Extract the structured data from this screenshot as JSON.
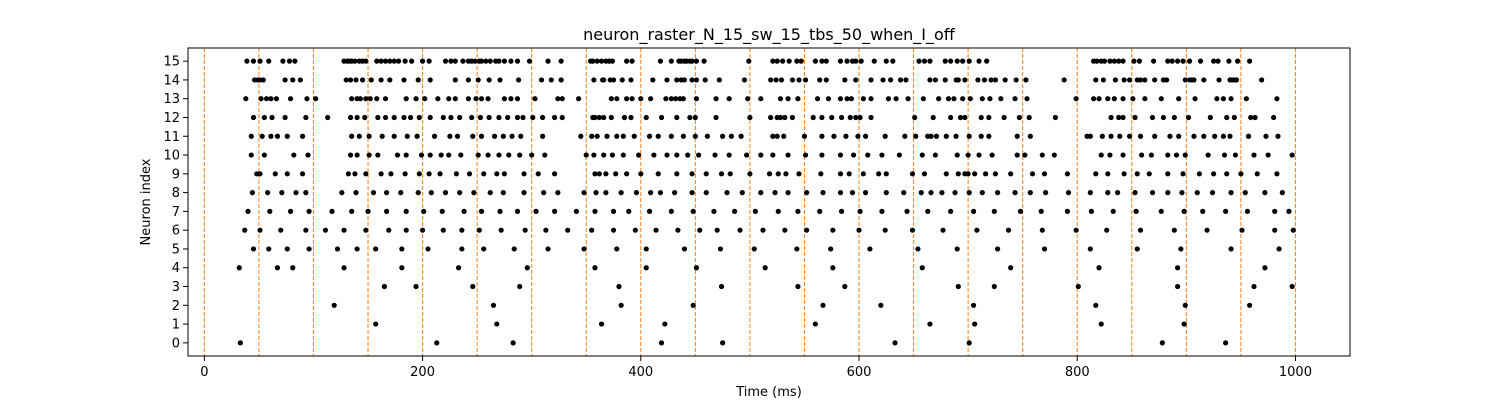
{
  "chart_data": {
    "type": "scatter",
    "title": "neuron_raster_N_15_sw_15_tbs_50_when_I_off",
    "xlabel": "Time (ms)",
    "ylabel": "Neuron index",
    "xlim": [
      -15,
      1050
    ],
    "ylim": [
      -0.7,
      15.7
    ],
    "x_ticks": [
      0,
      200,
      400,
      600,
      800,
      1000
    ],
    "y_ticks": [
      0,
      1,
      2,
      3,
      4,
      5,
      6,
      7,
      8,
      9,
      10,
      11,
      12,
      13,
      14,
      15
    ],
    "grid": false,
    "marker_color": "#000000",
    "vline_color": "#ff7f0e",
    "vlines": [
      0,
      50,
      100,
      150,
      200,
      250,
      300,
      350,
      400,
      450,
      500,
      550,
      600,
      650,
      700,
      750,
      800,
      850,
      900,
      950,
      1000
    ],
    "series": [
      {
        "neuron": 15,
        "spike_times": [
          39,
          45,
          51,
          59,
          72,
          78,
          83,
          128,
          131,
          133,
          135,
          138,
          142,
          145,
          148,
          158,
          162,
          166,
          170,
          174,
          178,
          184,
          190,
          200,
          206,
          221,
          226,
          230,
          237,
          242,
          245,
          248,
          252,
          254,
          258,
          262,
          267,
          270,
          275,
          281,
          287,
          298,
          315,
          327,
          354,
          356,
          360,
          364,
          368,
          371,
          374,
          387,
          392,
          418,
          428,
          435,
          437,
          440,
          442,
          445,
          447,
          451,
          458,
          499,
          521,
          525,
          530,
          536,
          543,
          547,
          560,
          566,
          570,
          583,
          589,
          594,
          597,
          602,
          614,
          625,
          631,
          655,
          660,
          665,
          679,
          684,
          690,
          695,
          701,
          710,
          717,
          815,
          818,
          822,
          825,
          830,
          834,
          838,
          842,
          852,
          857,
          870,
          883,
          887,
          892,
          897,
          903,
          913,
          925,
          929,
          939,
          947,
          958
        ]
      },
      {
        "neuron": 14,
        "spike_times": [
          46,
          49,
          51,
          54,
          74,
          81,
          88,
          130,
          134,
          139,
          145,
          153,
          162,
          170,
          183,
          196,
          207,
          230,
          242,
          251,
          261,
          271,
          288,
          309,
          318,
          327,
          357,
          365,
          366,
          372,
          375,
          383,
          391,
          411,
          424,
          433,
          437,
          440,
          447,
          451,
          459,
          472,
          495,
          519,
          524,
          529,
          539,
          545,
          551,
          564,
          570,
          587,
          597,
          611,
          622,
          629,
          638,
          643,
          665,
          670,
          679,
          689,
          691,
          697,
          709,
          715,
          721,
          725,
          734,
          744,
          753,
          788,
          817,
          824,
          835,
          843,
          848,
          855,
          858,
          862,
          871,
          879,
          882,
          899,
          903,
          905,
          907,
          916,
          930,
          940,
          942,
          944,
          946,
          969
        ]
      },
      {
        "neuron": 13,
        "spike_times": [
          38,
          52,
          57,
          61,
          66,
          79,
          94,
          102,
          135,
          140,
          143,
          148,
          152,
          158,
          166,
          185,
          194,
          202,
          214,
          224,
          230,
          242,
          249,
          254,
          260,
          275,
          281,
          287,
          303,
          324,
          328,
          343,
          373,
          378,
          387,
          392,
          400,
          409,
          423,
          428,
          432,
          436,
          439,
          451,
          469,
          481,
          498,
          510,
          528,
          535,
          544,
          562,
          572,
          583,
          589,
          593,
          604,
          611,
          627,
          634,
          645,
          659,
          673,
          682,
          687,
          695,
          702,
          713,
          720,
          730,
          743,
          754,
          799,
          815,
          820,
          828,
          834,
          842,
          851,
          862,
          877,
          893,
          908,
          928,
          934,
          941,
          955,
          983
        ]
      },
      {
        "neuron": 12,
        "spike_times": [
          45,
          55,
          62,
          74,
          93,
          113,
          134,
          140,
          147,
          159,
          166,
          174,
          183,
          189,
          197,
          207,
          219,
          226,
          234,
          245,
          253,
          261,
          270,
          278,
          287,
          292,
          301,
          310,
          321,
          328,
          356,
          358,
          362,
          366,
          373,
          385,
          391,
          405,
          419,
          433,
          445,
          450,
          469,
          500,
          519,
          525,
          528,
          532,
          539,
          558,
          566,
          575,
          584,
          592,
          597,
          601,
          611,
          651,
          668,
          684,
          693,
          697,
          712,
          719,
          733,
          747,
          756,
          780,
          831,
          838,
          842,
          853,
          869,
          879,
          889,
          902,
          922,
          937,
          944,
          959,
          963,
          980
        ]
      },
      {
        "neuron": 11,
        "spike_times": [
          43,
          53,
          61,
          67,
          76,
          90,
          135,
          142,
          151,
          163,
          174,
          186,
          195,
          211,
          225,
          232,
          246,
          254,
          266,
          274,
          282,
          290,
          310,
          345,
          355,
          360,
          369,
          378,
          384,
          394,
          408,
          416,
          428,
          439,
          450,
          461,
          475,
          483,
          492,
          521,
          525,
          531,
          550,
          566,
          577,
          588,
          599,
          606,
          624,
          642,
          652,
          663,
          666,
          671,
          680,
          689,
          701,
          712,
          719,
          745,
          757,
          809,
          812,
          823,
          831,
          839,
          848,
          858,
          871,
          885,
          893,
          907,
          916,
          926,
          934,
          940,
          957,
          973,
          984
        ]
      },
      {
        "neuron": 10,
        "spike_times": [
          43,
          55,
          82,
          95,
          134,
          140,
          151,
          159,
          177,
          185,
          199,
          207,
          217,
          224,
          235,
          251,
          260,
          270,
          279,
          289,
          300,
          312,
          350,
          357,
          366,
          374,
          384,
          398,
          412,
          424,
          433,
          443,
          453,
          468,
          481,
          497,
          510,
          521,
          535,
          551,
          566,
          583,
          595,
          608,
          621,
          637,
          658,
          670,
          690,
          700,
          710,
          722,
          745,
          752,
          768,
          779,
          822,
          830,
          842,
          859,
          868,
          883,
          891,
          899,
          920,
          935,
          945,
          962,
          975,
          997
        ]
      },
      {
        "neuron": 9,
        "spike_times": [
          48,
          51,
          65,
          76,
          90,
          132,
          138,
          148,
          162,
          171,
          184,
          197,
          206,
          216,
          231,
          243,
          256,
          268,
          275,
          293,
          306,
          321,
          358,
          362,
          368,
          377,
          387,
          400,
          416,
          433,
          447,
          460,
          474,
          482,
          500,
          518,
          526,
          533,
          545,
          565,
          583,
          591,
          604,
          618,
          625,
          649,
          660,
          680,
          691,
          697,
          700,
          706,
          716,
          725,
          739,
          759,
          770,
          791,
          817,
          828,
          843,
          855,
          866,
          883,
          897,
          912,
          925,
          937,
          950,
          965,
          983
        ]
      },
      {
        "neuron": 8,
        "spike_times": [
          44,
          58,
          71,
          84,
          93,
          126,
          139,
          155,
          167,
          180,
          196,
          208,
          221,
          234,
          247,
          262,
          274,
          293,
          311,
          324,
          348,
          359,
          368,
          382,
          396,
          409,
          418,
          431,
          447,
          460,
          479,
          493,
          510,
          523,
          535,
          552,
          567,
          583,
          594,
          606,
          625,
          641,
          657,
          666,
          676,
          688,
          701,
          713,
          727,
          743,
          757,
          771,
          792,
          812,
          828,
          837,
          853,
          869,
          883,
          896,
          910,
          924,
          941,
          954,
          972,
          988
        ]
      },
      {
        "neuron": 7,
        "spike_times": [
          40,
          60,
          79,
          96,
          117,
          135,
          150,
          167,
          185,
          201,
          218,
          238,
          254,
          271,
          287,
          304,
          321,
          341,
          358,
          375,
          389,
          408,
          428,
          448,
          467,
          486,
          505,
          526,
          544,
          564,
          584,
          601,
          621,
          644,
          663,
          684,
          705,
          724,
          748,
          767,
          791,
          813,
          833,
          854,
          877,
          898,
          915,
          936,
          956,
          981,
          994
        ]
      },
      {
        "neuron": 6,
        "spike_times": [
          37,
          51,
          70,
          93,
          111,
          128,
          148,
          169,
          185,
          200,
          219,
          236,
          252,
          272,
          294,
          313,
          333,
          355,
          375,
          395,
          414,
          434,
          454,
          470,
          491,
          512,
          532,
          552,
          576,
          600,
          624,
          649,
          677,
          708,
          737,
          768,
          799,
          827,
          858,
          889,
          919,
          951,
          981,
          998
        ]
      },
      {
        "neuron": 5,
        "spike_times": [
          45,
          59,
          76,
          96,
          122,
          140,
          157,
          181,
          205,
          236,
          256,
          284,
          315,
          348,
          378,
          405,
          440,
          473,
          504,
          543,
          574,
          610,
          654,
          690,
          727,
          770,
          812,
          855,
          895,
          941,
          985
        ]
      },
      {
        "neuron": 4,
        "spike_times": [
          32,
          67,
          81,
          128,
          181,
          233,
          296,
          358,
          405,
          451,
          514,
          576,
          658,
          739,
          820,
          892,
          972
        ]
      },
      {
        "neuron": 3,
        "spike_times": [
          165,
          194,
          246,
          289,
          380,
          474,
          544,
          587,
          691,
          724,
          801,
          892,
          962,
          997
        ]
      },
      {
        "neuron": 2,
        "spike_times": [
          119,
          265,
          382,
          448,
          567,
          620,
          705,
          817,
          899,
          958
        ]
      },
      {
        "neuron": 1,
        "spike_times": [
          157,
          268,
          364,
          422,
          560,
          665,
          706,
          822,
          898
        ]
      },
      {
        "neuron": 0,
        "spike_times": [
          33,
          213,
          283,
          419,
          475,
          633,
          701,
          878,
          936
        ]
      }
    ]
  }
}
